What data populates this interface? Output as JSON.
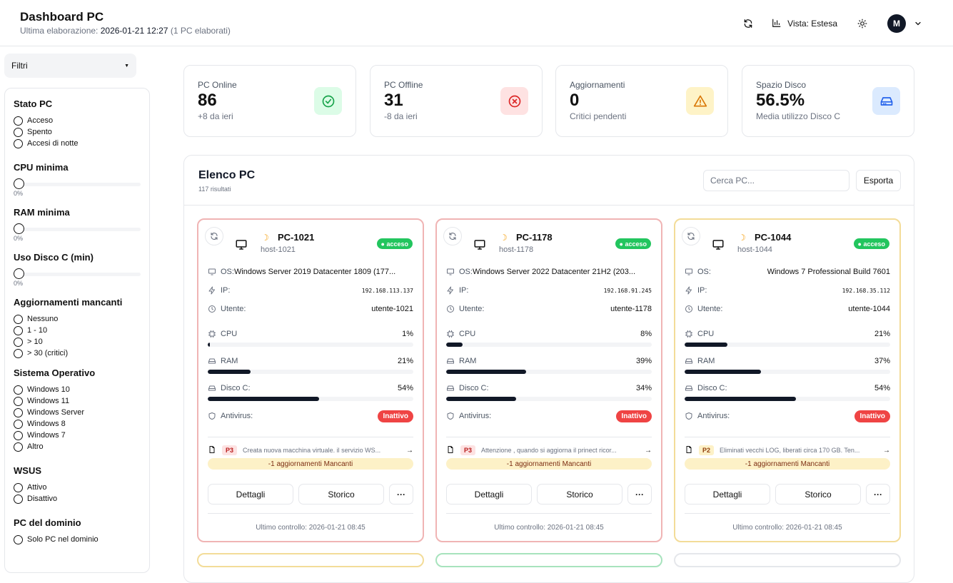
{
  "header": {
    "title": "Dashboard PC",
    "last_label": "Ultima elaborazione:",
    "last_time": "2026-01-21 12:27",
    "last_count": "(1 PC elaborati)",
    "view_label": "Vista: Estesa",
    "avatar": "M"
  },
  "sidebar": {
    "toggle_label": "Filtri",
    "toggle_arrow": "▼",
    "stato": {
      "title": "Stato PC",
      "options": [
        "Acceso",
        "Spento",
        "Accesi di notte"
      ]
    },
    "cpu": {
      "title": "CPU minima",
      "value": "0%"
    },
    "ram": {
      "title": "RAM minima",
      "value": "0%"
    },
    "disk": {
      "title": "Uso Disco C (min)",
      "value": "0%"
    },
    "updates": {
      "title": "Aggiornamenti mancanti",
      "options": [
        "Nessuno",
        "1 - 10",
        "> 10",
        "> 30 (critici)"
      ]
    },
    "os": {
      "title": "Sistema Operativo",
      "options": [
        "Windows 10",
        "Windows 11",
        "Windows Server",
        "Windows 8",
        "Windows 7",
        "Altro"
      ]
    },
    "wsus": {
      "title": "WSUS",
      "options": [
        "Attivo",
        "Disattivo"
      ]
    },
    "domain": {
      "title": "PC del dominio",
      "options": [
        "Solo PC nel dominio"
      ]
    }
  },
  "stats": [
    {
      "label": "PC Online",
      "value": "86",
      "sub": "+8 da ieri",
      "color": "#16a34a",
      "bg": "#dcfce7"
    },
    {
      "label": "PC Offline",
      "value": "31",
      "sub": "-8 da ieri",
      "color": "#dc2626",
      "bg": "#fee2e2"
    },
    {
      "label": "Aggiornamenti",
      "value": "0",
      "sub": "Critici pendenti",
      "color": "#d97706",
      "bg": "#fef3c7"
    },
    {
      "label": "Spazio Disco",
      "value": "56.5%",
      "sub": "Media utilizzo Disco C",
      "color": "#2563eb",
      "bg": "#dbeafe"
    }
  ],
  "list": {
    "title": "Elenco PC",
    "count": "117 risultati",
    "search_placeholder": "Cerca PC...",
    "export_label": "Esporta"
  },
  "labels": {
    "os": "OS:",
    "ip": "IP:",
    "user": "Utente:",
    "cpu": "CPU",
    "ram": "RAM",
    "disk": "Disco C:",
    "antivirus": "Antivirus:",
    "details": "Dettagli",
    "history": "Storico",
    "more": "···"
  },
  "pcs": [
    {
      "name": "PC-1021",
      "host": "host-1021",
      "status": "acceso",
      "os": "Windows Server 2019 Datacenter 1809 (177...",
      "ip": "192.168.113.137",
      "user": "utente-1021",
      "cpu": 1,
      "cpu_label": "1%",
      "ram": 21,
      "ram_label": "21%",
      "disk": 54,
      "disk_label": "54%",
      "antivirus": "Inattivo",
      "priority": "P3",
      "note": "Creata nuova macchina virtuale. il servizio WS...",
      "missing": "-1 aggiornamenti Mancanti",
      "last_check": "Ultimo controllo: 2026-01-21 08:45",
      "border": "red"
    },
    {
      "name": "PC-1178",
      "host": "host-1178",
      "status": "acceso",
      "os": "Windows Server 2022 Datacenter 21H2 (203...",
      "ip": "192.168.91.245",
      "user": "utente-1178",
      "cpu": 8,
      "cpu_label": "8%",
      "ram": 39,
      "ram_label": "39%",
      "disk": 34,
      "disk_label": "34%",
      "antivirus": "Inattivo",
      "priority": "P3",
      "note": "Attenzione , quando si aggiorna il prinect ricor...",
      "missing": "-1 aggiornamenti Mancanti",
      "last_check": "Ultimo controllo: 2026-01-21 08:45",
      "border": "red"
    },
    {
      "name": "PC-1044",
      "host": "host-1044",
      "status": "acceso",
      "os": "Windows 7 Professional Build 7601",
      "ip": "192.168.35.112",
      "user": "utente-1044",
      "cpu": 21,
      "cpu_label": "21%",
      "ram": 37,
      "ram_label": "37%",
      "disk": 54,
      "disk_label": "54%",
      "antivirus": "Inattivo",
      "priority": "P2",
      "note": "Eliminati vecchi LOG, liberati circa 170 GB. Ten...",
      "missing": "-1 aggiornamenti Mancanti",
      "last_check": "Ultimo controllo: 2026-01-21 08:45",
      "border": "yellow"
    }
  ]
}
